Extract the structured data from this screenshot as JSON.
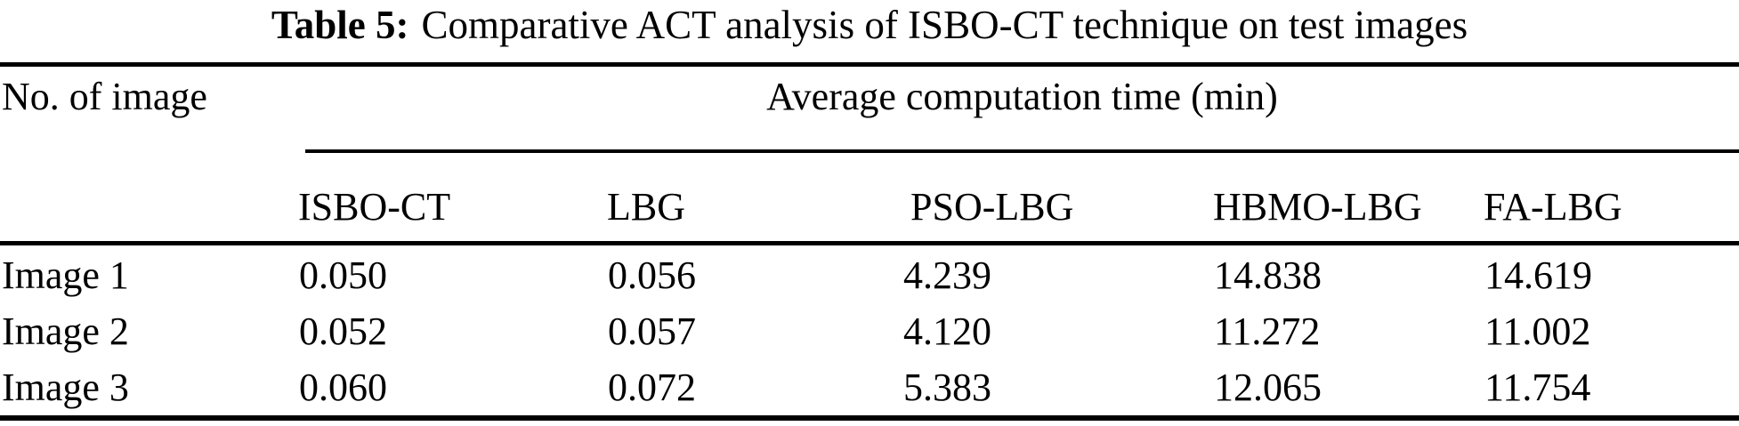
{
  "caption": {
    "label": "Table 5:",
    "text": "Comparative ACT analysis of ISBO-CT technique on test images"
  },
  "table": {
    "row_header": "No. of image",
    "span_header": "Average computation time (min)",
    "columns": [
      "ISBO-CT",
      "LBG",
      "PSO-LBG",
      "HBMO-LBG",
      "FA-LBG"
    ],
    "rows": [
      {
        "label": "Image 1",
        "values": [
          "0.050",
          "0.056",
          "4.239",
          "14.838",
          "14.619"
        ]
      },
      {
        "label": "Image 2",
        "values": [
          "0.052",
          "0.057",
          "4.120",
          "11.272",
          "11.002"
        ]
      },
      {
        "label": "Image 3",
        "values": [
          "0.060",
          "0.072",
          "5.383",
          "12.065",
          "11.754"
        ]
      }
    ]
  },
  "colors": {
    "background": "#ffffff",
    "text": "#000000",
    "rule": "#000000"
  },
  "chart_data": {
    "type": "table",
    "title": "Table 5: Comparative ACT analysis of ISBO-CT technique on test images",
    "group_header": "Average computation time (min)",
    "categories": [
      "ISBO-CT",
      "LBG",
      "PSO-LBG",
      "HBMO-LBG",
      "FA-LBG"
    ],
    "series": [
      {
        "name": "Image 1",
        "values": [
          0.05,
          0.056,
          4.239,
          14.838,
          14.619
        ]
      },
      {
        "name": "Image 2",
        "values": [
          0.052,
          0.057,
          4.12,
          11.272,
          11.002
        ]
      },
      {
        "name": "Image 3",
        "values": [
          0.06,
          0.072,
          5.383,
          12.065,
          11.754
        ]
      }
    ]
  }
}
